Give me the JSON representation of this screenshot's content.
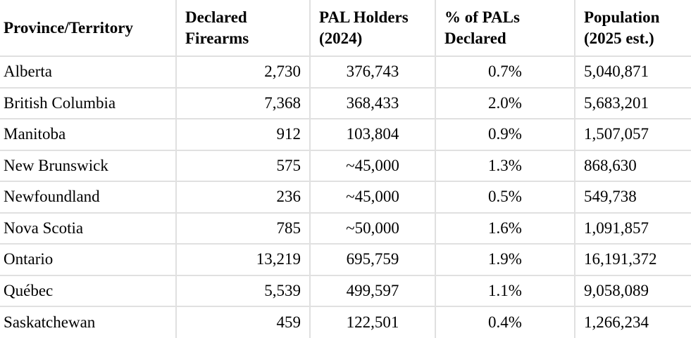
{
  "colors": {
    "background": "#ffffff",
    "border": "#e0e0e0",
    "text": "#000000"
  },
  "chart_data": {
    "type": "table",
    "columns": [
      "Province/Territory",
      "Declared Firearms",
      "PAL Holders (2024)",
      "% of PALs Declared",
      "Population (2025 est.)"
    ],
    "rows": [
      [
        "Alberta",
        "2,730",
        "376,743",
        "0.7%",
        "5,040,871"
      ],
      [
        "British Columbia",
        "7,368",
        "368,433",
        "2.0%",
        "5,683,201"
      ],
      [
        "Manitoba",
        "912",
        "103,804",
        "0.9%",
        "1,507,057"
      ],
      [
        "New Brunswick",
        "575",
        "~45,000",
        "1.3%",
        "868,630"
      ],
      [
        "Newfoundland",
        "236",
        "~45,000",
        "0.5%",
        "549,738"
      ],
      [
        "Nova Scotia",
        "785",
        "~50,000",
        "1.6%",
        "1,091,857"
      ],
      [
        "Ontario",
        "13,219",
        "695,759",
        "1.9%",
        "16,191,372"
      ],
      [
        "Québec",
        "5,539",
        "499,597",
        "1.1%",
        "9,058,089"
      ],
      [
        "Saskatchewan",
        "459",
        "122,501",
        "0.4%",
        "1,266,234"
      ]
    ]
  }
}
